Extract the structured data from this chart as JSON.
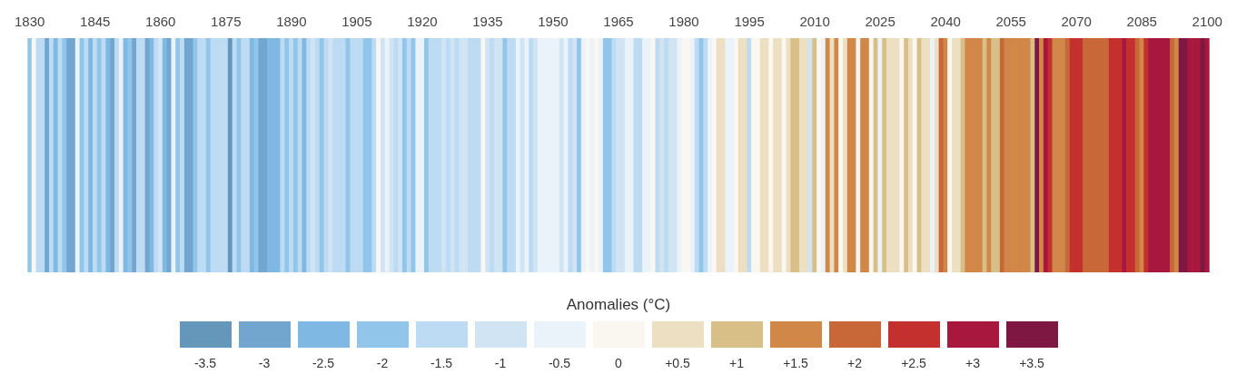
{
  "chart_data": {
    "type": "heatmap",
    "categories": [
      "1830",
      null,
      null,
      null,
      null,
      null,
      null,
      null,
      null,
      null,
      null,
      null,
      null,
      null,
      null,
      "1845",
      null,
      null,
      null,
      null,
      null,
      null,
      null,
      null,
      null,
      null,
      null,
      null,
      null,
      null,
      "1860",
      null,
      null,
      null,
      null,
      null,
      null,
      null,
      null,
      null,
      null,
      null,
      null,
      null,
      null,
      "1875",
      null,
      null,
      null,
      null,
      null,
      null,
      null,
      null,
      null,
      null,
      null,
      null,
      null,
      null,
      "1890",
      null,
      null,
      null,
      null,
      null,
      null,
      null,
      null,
      null,
      null,
      null,
      null,
      null,
      null,
      "1905",
      null,
      null,
      null,
      null,
      null,
      null,
      null,
      null,
      null,
      null,
      null,
      null,
      null,
      null,
      "1920",
      null,
      null,
      null,
      null,
      null,
      null,
      null,
      null,
      null,
      null,
      null,
      null,
      null,
      null,
      "1935",
      null,
      null,
      null,
      null,
      null,
      null,
      null,
      null,
      null,
      null,
      null,
      null,
      null,
      null,
      "1950",
      null,
      null,
      null,
      null,
      null,
      null,
      null,
      null,
      null,
      null,
      null,
      null,
      null,
      null,
      "1965",
      null,
      null,
      null,
      null,
      null,
      null,
      null,
      null,
      null,
      null,
      null,
      null,
      null,
      null,
      "1980",
      null,
      null,
      null,
      null,
      null,
      null,
      null,
      null,
      null,
      null,
      null,
      null,
      null,
      null,
      "1995",
      null,
      null,
      null,
      null,
      null,
      null,
      null,
      null,
      null,
      null,
      null,
      null,
      null,
      null,
      "2010",
      null,
      null,
      null,
      null,
      null,
      null,
      null,
      null,
      null,
      null,
      null,
      null,
      null,
      null,
      "2025",
      null,
      null,
      null,
      null,
      null,
      null,
      null,
      null,
      null,
      null,
      null,
      null,
      null,
      null,
      "2040",
      null,
      null,
      null,
      null,
      null,
      null,
      null,
      null,
      null,
      null,
      null,
      null,
      null,
      null,
      "2055",
      null,
      null,
      null,
      null,
      null,
      null,
      null,
      null,
      null,
      null,
      null,
      null,
      null,
      null,
      "2070",
      null,
      null,
      null,
      null,
      null,
      null,
      null,
      null,
      null,
      null,
      null,
      null,
      null,
      null,
      "2085",
      null,
      null,
      null,
      null,
      null,
      null,
      null,
      null,
      null,
      null,
      null,
      null,
      null,
      null,
      "2100"
    ],
    "y_categories": [
      null
    ],
    "cells": [
      [
        -2,
        0,
        -1.5,
        -1.5,
        -3,
        -1.5,
        -2.5,
        -1.5,
        -2,
        -3,
        -3,
        -0.5,
        -2,
        -1.5,
        -2.5,
        -1.5,
        -2,
        -1.5,
        -2.5,
        -3,
        -1.5,
        -0.5,
        -2.5,
        -2,
        -3,
        -1.5,
        -1.5,
        -3,
        -2.5,
        -1.5,
        -1,
        -2.5,
        -3,
        -0.5,
        -2,
        -1.5,
        -3,
        -3,
        -2,
        -1.5,
        -1.5,
        -2,
        -1.5,
        -1.5,
        -1.5,
        -1.5,
        -3.5,
        -1.5,
        -2,
        -1.5,
        -1.5,
        -2.5,
        -2,
        -3,
        -3,
        -2.5,
        -2.5,
        -2.5,
        -1.5,
        -2,
        -1.5,
        -2,
        -1.5,
        -2.5,
        -1.5,
        -1,
        -1.5,
        -2,
        -1.5,
        -1,
        -1.5,
        -1.5,
        -1.5,
        -2,
        -1.5,
        -1.5,
        -1.5,
        -2,
        -2,
        -1.5,
        0,
        -1,
        -0.5,
        -1,
        -1.5,
        -1,
        -2,
        -1.5,
        -2,
        -0.5,
        -0.5,
        -2,
        -1.5,
        -1.5,
        -1.5,
        -1,
        -1.5,
        -1,
        -1.5,
        -1,
        -1,
        -1.5,
        -1.5,
        -1.5,
        0,
        -1,
        -1.5,
        -1,
        -1,
        -2,
        -1.5,
        -1.5,
        -0.5,
        -1,
        -0.5,
        -1.5,
        -1,
        -0.5,
        -0.5,
        -0.5,
        -0.5,
        -0.5,
        -1,
        -0.5,
        -1.5,
        -1,
        -2,
        -0.5,
        0,
        -0.5,
        0,
        -0.5,
        -2,
        -2,
        -1.5,
        -1,
        -1,
        -0.5,
        -0.5,
        -1.5,
        -1.5,
        -0.5,
        -0.5,
        0,
        -1.5,
        -1,
        -1.5,
        -1,
        -1,
        -0.5,
        0,
        0,
        -0.5,
        -1.5,
        -2,
        -1.5,
        -0.5,
        0,
        0.5,
        0.5,
        -0.5,
        -0.5,
        0,
        0.5,
        0.5,
        -1.5,
        0,
        0,
        0.5,
        0.5,
        0,
        0.5,
        0.5,
        0,
        0.5,
        1,
        1,
        0.5,
        0.5,
        -1,
        1,
        0,
        -0.5,
        1.5,
        0.5,
        1.5,
        0,
        0.5,
        1.5,
        1.5,
        0,
        1.5,
        1.5,
        0,
        1,
        -0.5,
        1,
        0.5,
        0.5,
        0.5,
        0,
        1,
        0.5,
        0,
        1,
        0.5,
        0.5,
        -0.5,
        0.5,
        2,
        1.5,
        0,
        0.5,
        0.5,
        1,
        1.5,
        1.5,
        1.5,
        1.5,
        1,
        1.5,
        1,
        1,
        2,
        1.5,
        1.5,
        1.5,
        1.5,
        1.5,
        1.5,
        1,
        3.5,
        1.5,
        3,
        2.5,
        1.5,
        1.5,
        1.5,
        2,
        2.5,
        2.5,
        2.5,
        2,
        2,
        2,
        2,
        2,
        2,
        2.5,
        2.5,
        2.5,
        3,
        2.5,
        2.5,
        2,
        1.5,
        2.5,
        3,
        3,
        3,
        3,
        3,
        2,
        1.5,
        3.5,
        3.5,
        3,
        3,
        3,
        3.5,
        3
      ]
    ],
    "clabel": "Anomalies (°C)",
    "clim": [
      -3.75,
      3.75
    ],
    "cticks": [
      -3.5,
      -3,
      -2.5,
      -2,
      -1.5,
      -1,
      -0.5,
      0,
      {
        "value": 0.5,
        "label": "+0.5"
      },
      {
        "value": 1,
        "label": "+1"
      },
      {
        "value": 1.5,
        "label": "+1.5"
      },
      {
        "value": 2,
        "label": "+2"
      },
      {
        "value": 2.5,
        "label": "+2.5"
      },
      {
        "value": 3,
        "label": "+3"
      },
      {
        "value": 3.5,
        "label": "+3.5"
      }
    ]
  }
}
